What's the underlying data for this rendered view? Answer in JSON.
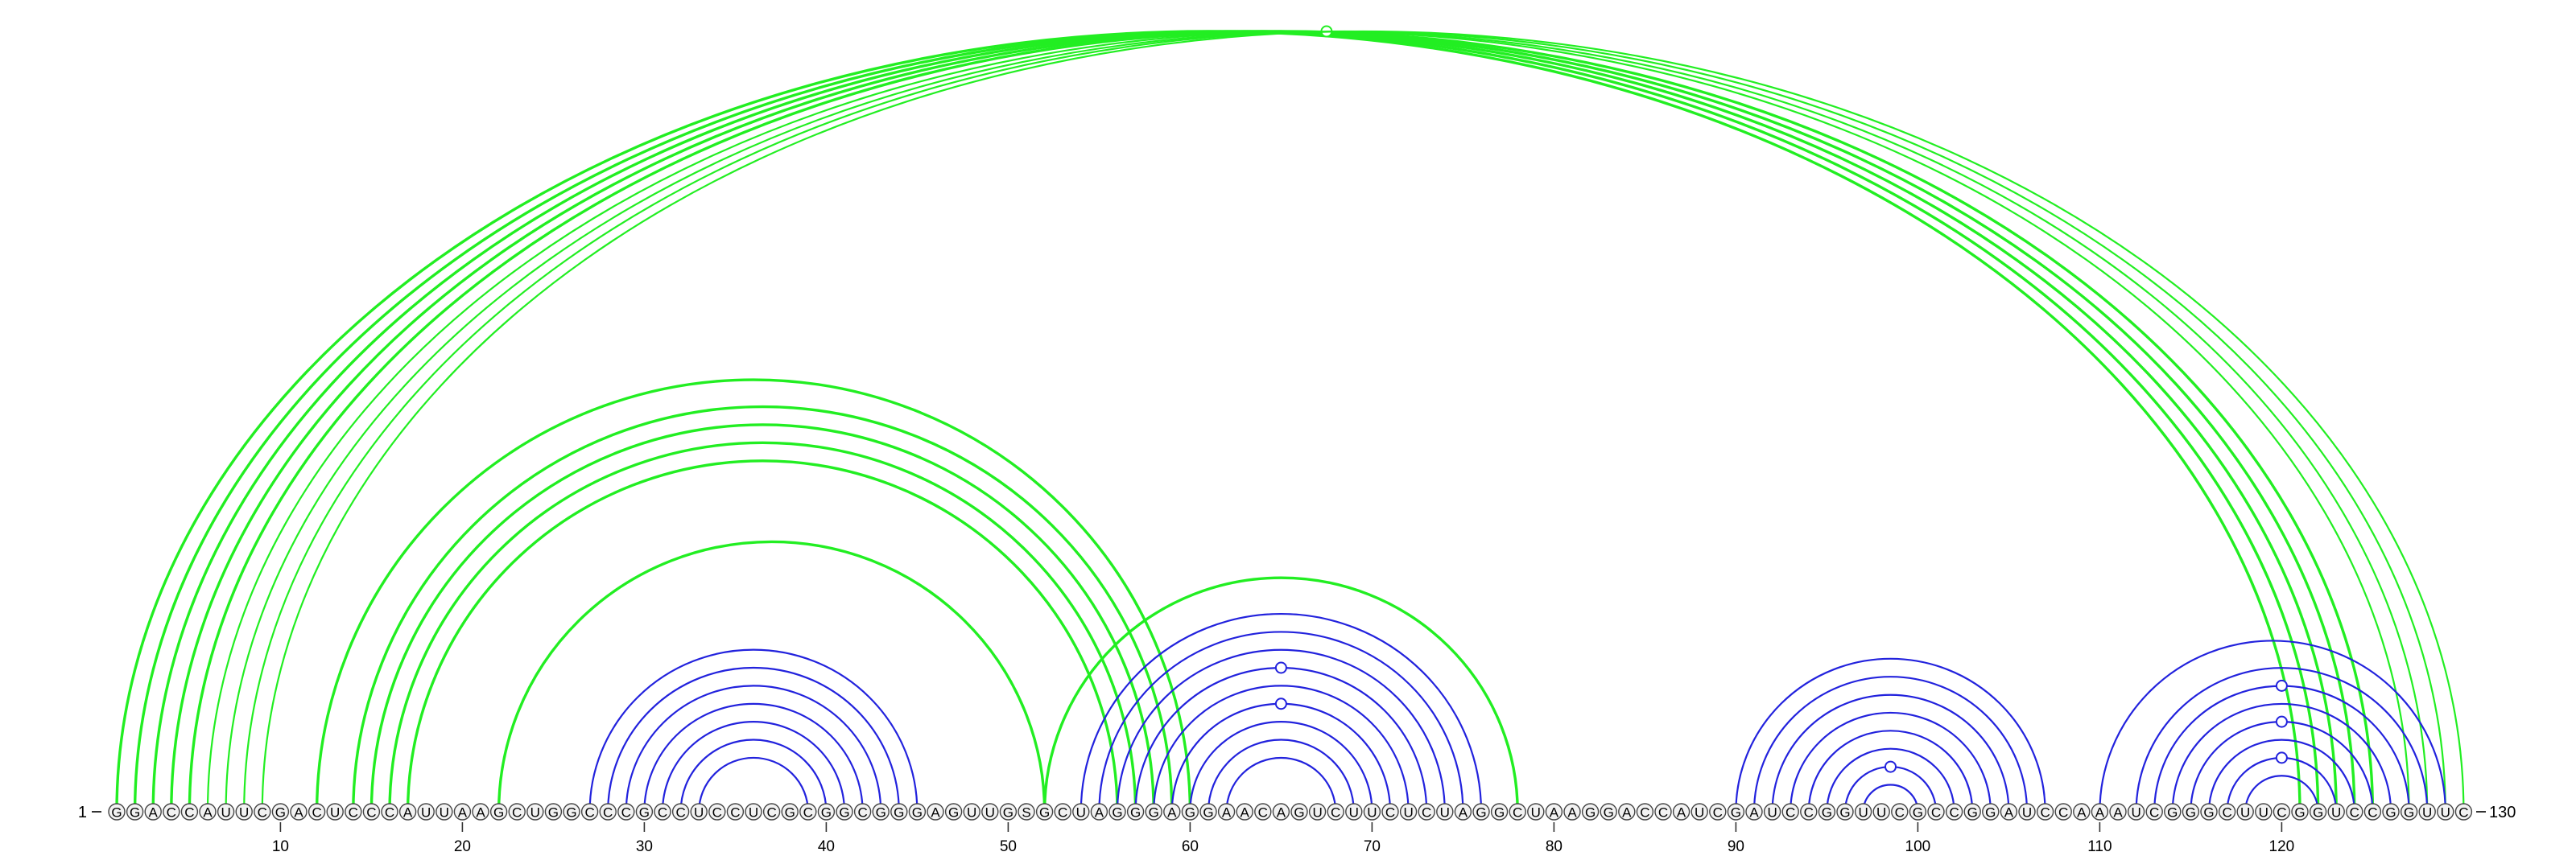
{
  "diagram": {
    "type": "rna-arc-diagram",
    "start_label": "1",
    "end_label": "130",
    "sequence": "GGACCAUUCGACUCCCAUUAAGCUGGCCCGCCUCCUCGCGGCGGGAGUUGSGCUAGGGAGGAACAGUCUUCUCUAGGCUAAGGACCAUCGAUCCGGUUCGCCGGAUCCAAAUCGGGCUUCGGUCCGGUUC",
    "ticks": [
      "10",
      "20",
      "30",
      "40",
      "50",
      "60",
      "70",
      "80",
      "90",
      "100",
      "110",
      "120"
    ],
    "colors": {
      "green": "#22ee22",
      "blue": "#2222dd",
      "base_fill": "#f2f2f2",
      "base_stroke": "#444444",
      "axis": "#333333"
    },
    "arc_groups": [
      {
        "color": "green",
        "weight": "thick",
        "pairs": [
          [
            1,
            121
          ],
          [
            2,
            122
          ],
          [
            3,
            123
          ],
          [
            4,
            124
          ],
          [
            5,
            125
          ]
        ]
      },
      {
        "color": "green",
        "weight": "thin",
        "pairs": [
          [
            6,
            127
          ],
          [
            7,
            128
          ],
          [
            8,
            129
          ],
          [
            9,
            130
          ]
        ],
        "marker_pair": [
          7,
          128
        ]
      },
      {
        "color": "green",
        "weight": "thick",
        "pairs": [
          [
            12,
            60
          ],
          [
            14,
            59
          ],
          [
            15,
            58
          ],
          [
            16,
            57
          ],
          [
            17,
            56
          ]
        ]
      },
      {
        "color": "green",
        "weight": "thick",
        "pairs": [
          [
            22,
            52
          ]
        ]
      },
      {
        "color": "green",
        "weight": "thick",
        "pairs": [
          [
            52,
            78
          ]
        ]
      },
      {
        "color": "blue",
        "weight": "thin",
        "pairs": [
          [
            27,
            45
          ],
          [
            28,
            44
          ],
          [
            29,
            43
          ],
          [
            30,
            42
          ],
          [
            31,
            41
          ],
          [
            32,
            40
          ],
          [
            33,
            39
          ]
        ]
      },
      {
        "color": "blue",
        "weight": "thin",
        "pairs": [
          [
            54,
            76
          ],
          [
            55,
            75
          ],
          [
            56,
            74
          ],
          [
            57,
            73
          ],
          [
            58,
            72
          ],
          [
            59,
            71
          ],
          [
            60,
            70
          ],
          [
            61,
            69
          ],
          [
            62,
            68
          ]
        ],
        "marker_pairs": [
          [
            57,
            73
          ],
          [
            59,
            71
          ]
        ]
      },
      {
        "color": "blue",
        "weight": "thin",
        "pairs": [
          [
            90,
            107
          ],
          [
            91,
            106
          ],
          [
            92,
            105
          ],
          [
            93,
            104
          ],
          [
            94,
            103
          ],
          [
            95,
            102
          ],
          [
            96,
            101
          ],
          [
            97,
            100
          ]
        ],
        "marker_pairs": [
          [
            96,
            101
          ]
        ]
      },
      {
        "color": "blue",
        "weight": "thin",
        "pairs": [
          [
            110,
            129
          ],
          [
            112,
            128
          ],
          [
            113,
            127
          ],
          [
            114,
            126
          ],
          [
            115,
            125
          ],
          [
            116,
            124
          ],
          [
            117,
            123
          ],
          [
            118,
            122
          ]
        ],
        "marker_pairs": [
          [
            113,
            127
          ],
          [
            115,
            125
          ],
          [
            117,
            123
          ]
        ]
      }
    ]
  }
}
